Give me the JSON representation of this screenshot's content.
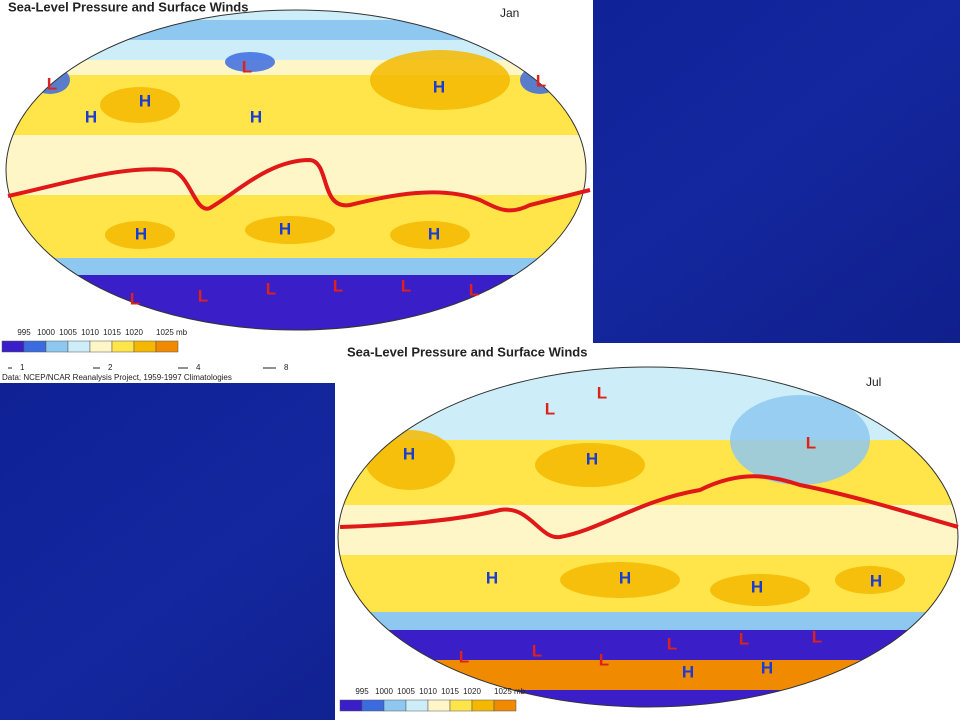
{
  "panels": [
    {
      "title": "Sea-Level Pressure and Surface Winds",
      "month": "Jan",
      "legend": [
        "995",
        "1000",
        "1005",
        "1010",
        "1015",
        "1020",
        "1025 mb"
      ],
      "wind_scale": [
        "1",
        "2",
        "4",
        "8"
      ],
      "source": "Data: NCEP/NCAR Reanalysis Project, 1959-1997 Climatologies",
      "markers": [
        "L",
        "L",
        "L",
        "H",
        "H",
        "H",
        "H",
        "H",
        "H",
        "H",
        "L",
        "L",
        "L",
        "L",
        "L",
        "L"
      ]
    },
    {
      "title": "Sea-Level Pressure and Surface Winds",
      "month": "Jul",
      "legend": [
        "995",
        "1000",
        "1005",
        "1010",
        "1015",
        "1020",
        "1025 mb"
      ],
      "markers": [
        "L",
        "L",
        "L",
        "H",
        "H",
        "H",
        "H",
        "H",
        "H",
        "L",
        "L",
        "L",
        "L",
        "L",
        "L",
        "H",
        "H"
      ]
    }
  ]
}
